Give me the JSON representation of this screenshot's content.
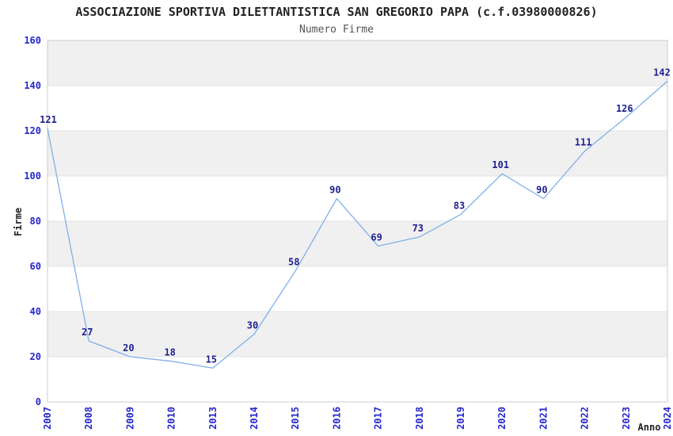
{
  "chart_data": {
    "type": "line",
    "title": "ASSOCIAZIONE SPORTIVA DILETTANTISTICA SAN GREGORIO PAPA (c.f.03980000826)",
    "subtitle": "Numero Firme",
    "xlabel": "Anno",
    "ylabel": "Firme",
    "categories": [
      "2007",
      "2008",
      "2009",
      "2010",
      "2013",
      "2014",
      "2015",
      "2016",
      "2017",
      "2018",
      "2019",
      "2020",
      "2021",
      "2022",
      "2023",
      "2024"
    ],
    "values": [
      121,
      27,
      20,
      18,
      15,
      30,
      58,
      90,
      69,
      73,
      83,
      101,
      90,
      111,
      126,
      142
    ],
    "ylim": [
      0,
      160
    ],
    "ytick_step": 20,
    "yticks": [
      0,
      20,
      40,
      60,
      80,
      100,
      120,
      140,
      160
    ],
    "grid": "horizontal-bands-alternating",
    "legend": "none",
    "point_labels_visible": true,
    "colors": {
      "line": "#7fb0ea",
      "point_label": "#1f1f8f",
      "tick_label": "#2626cc",
      "band": "#f0f0f0",
      "grid_line": "#e3e3e3",
      "plot_border": "#cccccc",
      "title": "#222222",
      "subtitle": "#555555",
      "axis_label": "#222222",
      "background": "#ffffff"
    }
  }
}
